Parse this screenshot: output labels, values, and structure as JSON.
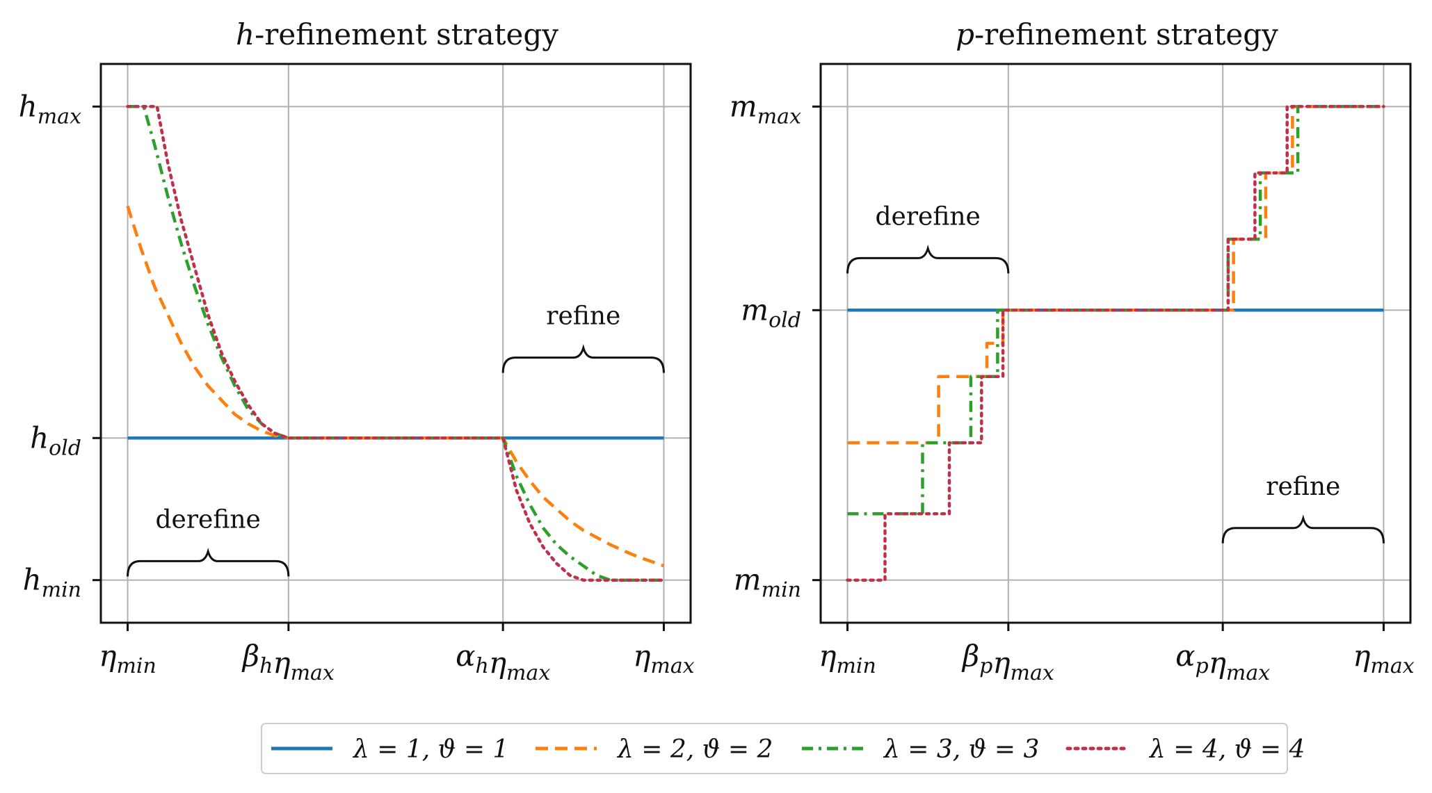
{
  "colors": {
    "s1": "#1f77b4",
    "s2": "#ff7f0e",
    "s3": "#2ca02c",
    "s4": "#c0304a",
    "grid": "#b0b0b0",
    "axis": "#111111"
  },
  "legend": {
    "placement": "bottom-center",
    "entries": [
      "λ = 1, ϑ = 1",
      "λ = 2, ϑ = 2",
      "λ = 3, ϑ = 3",
      "λ = 4, ϑ = 4"
    ]
  },
  "chart_data": [
    {
      "type": "line",
      "title": "h-refinement strategy",
      "title_italic_prefix": "h",
      "title_rest": "-refinement strategy",
      "xlabel": "",
      "ylabel": "",
      "grid": true,
      "xlim": [
        -0.05,
        1.05
      ],
      "ylim": [
        -0.09,
        1.09
      ],
      "xticks": [
        {
          "v": 0.0,
          "label": "ηmin"
        },
        {
          "v": 0.3,
          "label": "βhηmax"
        },
        {
          "v": 0.7,
          "label": "αhηmax"
        },
        {
          "v": 1.0,
          "label": "ηmax"
        }
      ],
      "yticks": [
        {
          "v": 0.0,
          "label": "hmin"
        },
        {
          "v": 0.3,
          "label": "hold"
        },
        {
          "v": 1.0,
          "label": "hmax"
        }
      ],
      "annotations": [
        {
          "text": "derefine",
          "x0": 0.0,
          "x1": 0.3,
          "y": 0.04,
          "label_y": 0.11
        },
        {
          "text": "refine",
          "x0": 0.7,
          "x1": 1.0,
          "y": 0.47,
          "label_y": 0.54
        }
      ],
      "series": [
        {
          "name": "λ = 1, ϑ = 1",
          "style": "solid",
          "x": [
            0,
            0.3,
            0.7,
            1.0
          ],
          "y": [
            0.3,
            0.3,
            0.3,
            0.3
          ]
        },
        {
          "name": "λ = 2, ϑ = 2",
          "style": "dashed",
          "x": [
            0,
            0.025,
            0.05,
            0.075,
            0.1,
            0.125,
            0.15,
            0.175,
            0.2,
            0.225,
            0.25,
            0.275,
            0.3,
            0.7,
            0.725,
            0.75,
            0.775,
            0.8,
            0.825,
            0.85,
            0.875,
            0.9,
            0.925,
            0.95,
            0.975,
            1.0
          ],
          "y": [
            0.79,
            0.7,
            0.62,
            0.56,
            0.5,
            0.45,
            0.41,
            0.38,
            0.35,
            0.33,
            0.315,
            0.305,
            0.3,
            0.3,
            0.25,
            0.21,
            0.175,
            0.15,
            0.125,
            0.105,
            0.09,
            0.075,
            0.062,
            0.05,
            0.04,
            0.03
          ]
        },
        {
          "name": "λ = 3, ϑ = 3",
          "style": "dashdot",
          "x": [
            0,
            0.03,
            0.05,
            0.075,
            0.1,
            0.125,
            0.15,
            0.175,
            0.2,
            0.225,
            0.25,
            0.275,
            0.3,
            0.7,
            0.725,
            0.75,
            0.775,
            0.8,
            0.825,
            0.85,
            0.875,
            0.9,
            1.0
          ],
          "y": [
            1.0,
            1.0,
            0.92,
            0.81,
            0.71,
            0.62,
            0.54,
            0.47,
            0.41,
            0.36,
            0.33,
            0.31,
            0.3,
            0.3,
            0.22,
            0.16,
            0.11,
            0.075,
            0.05,
            0.03,
            0.01,
            0.0,
            0.0
          ]
        },
        {
          "name": "λ = 4, ϑ = 4",
          "style": "dotted",
          "x": [
            0,
            0.055,
            0.075,
            0.1,
            0.125,
            0.15,
            0.175,
            0.2,
            0.225,
            0.25,
            0.275,
            0.3,
            0.7,
            0.725,
            0.75,
            0.775,
            0.8,
            0.825,
            0.85,
            1.0
          ],
          "y": [
            1.0,
            1.0,
            0.88,
            0.76,
            0.66,
            0.56,
            0.48,
            0.42,
            0.37,
            0.33,
            0.31,
            0.3,
            0.3,
            0.19,
            0.12,
            0.07,
            0.035,
            0.01,
            0.0,
            0.0
          ]
        }
      ]
    },
    {
      "type": "line",
      "title": "p-refinement strategy",
      "title_italic_prefix": "p",
      "title_rest": "-refinement strategy",
      "xlabel": "",
      "ylabel": "",
      "grid": true,
      "xlim": [
        -0.05,
        1.05
      ],
      "ylim": [
        -0.09,
        1.09
      ],
      "xticks": [
        {
          "v": 0.0,
          "label": "ηmin"
        },
        {
          "v": 0.3,
          "label": "βpηmax"
        },
        {
          "v": 0.7,
          "label": "αpηmax"
        },
        {
          "v": 1.0,
          "label": "ηmax"
        }
      ],
      "yticks": [
        {
          "v": 0.0,
          "label": "mmin"
        },
        {
          "v": 0.57,
          "label": "mold"
        },
        {
          "v": 1.0,
          "label": "mmax"
        }
      ],
      "annotations": [
        {
          "text": "derefine",
          "x0": 0.0,
          "x1": 0.3,
          "y": 0.68,
          "label_y": 0.75
        },
        {
          "text": "refine",
          "x0": 0.7,
          "x1": 1.0,
          "y": 0.11,
          "label_y": 0.18
        }
      ],
      "series": [
        {
          "name": "λ = 1, ϑ = 1",
          "style": "solid",
          "x": [
            0,
            1.0
          ],
          "y": [
            0.57,
            0.57
          ]
        },
        {
          "name": "λ = 2, ϑ = 2",
          "style": "dashed",
          "x": [
            0,
            0.17,
            0.17,
            0.26,
            0.26,
            0.29,
            0.29,
            0.3,
            0.72,
            0.72,
            0.78,
            0.78,
            0.83,
            0.83,
            0.87,
            0.87,
            1.0
          ],
          "y": [
            0.29,
            0.29,
            0.43,
            0.43,
            0.5,
            0.5,
            0.57,
            0.57,
            0.57,
            0.72,
            0.72,
            0.86,
            0.86,
            1.0,
            1.0,
            1.0,
            1.0
          ]
        },
        {
          "name": "λ = 3, ϑ = 3",
          "style": "dashdot",
          "x": [
            0,
            0.14,
            0.14,
            0.23,
            0.23,
            0.28,
            0.28,
            0.3,
            0.71,
            0.71,
            0.77,
            0.77,
            0.84,
            0.84,
            1.0
          ],
          "y": [
            0.14,
            0.14,
            0.29,
            0.29,
            0.43,
            0.43,
            0.57,
            0.57,
            0.57,
            0.72,
            0.72,
            0.86,
            0.86,
            1.0,
            1.0
          ]
        },
        {
          "name": "λ = 4, ϑ = 4",
          "style": "dotted",
          "x": [
            0,
            0.07,
            0.07,
            0.19,
            0.19,
            0.25,
            0.25,
            0.29,
            0.29,
            0.3,
            0.71,
            0.71,
            0.76,
            0.76,
            0.82,
            0.82,
            1.0
          ],
          "y": [
            0.0,
            0.0,
            0.14,
            0.14,
            0.29,
            0.29,
            0.43,
            0.43,
            0.57,
            0.57,
            0.57,
            0.72,
            0.72,
            0.86,
            0.86,
            1.0,
            1.0
          ]
        }
      ]
    }
  ]
}
